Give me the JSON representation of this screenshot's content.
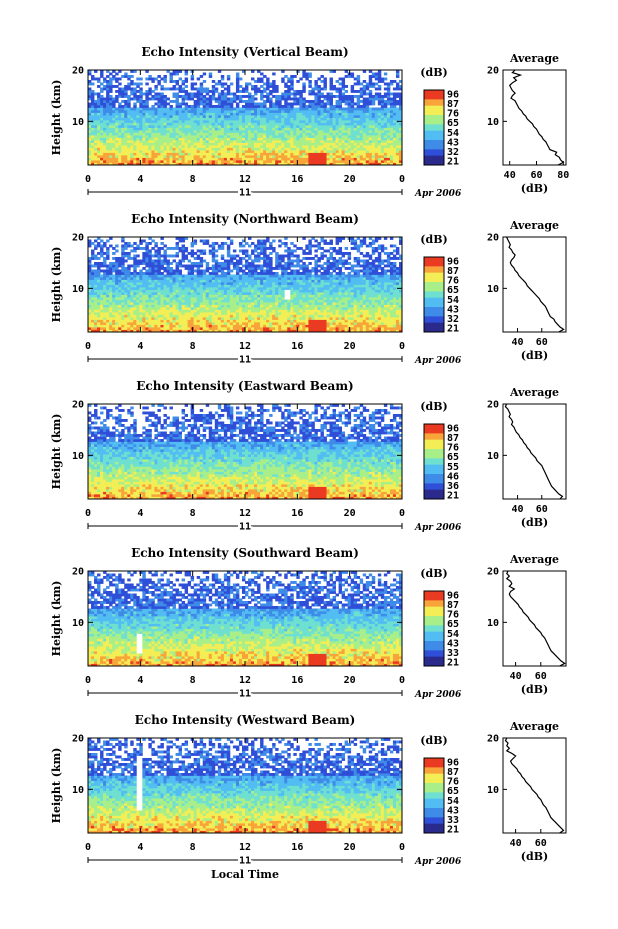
{
  "colors": {
    "colormap": [
      "#2a2a8c",
      "#2f4fd8",
      "#3f8be8",
      "#52bdf2",
      "#6fe0d0",
      "#a8ef8a",
      "#f3ee55",
      "#f8a43a",
      "#ea3a22"
    ],
    "profile_line": "#000000",
    "axis": "#000000"
  },
  "xlabel": "Local Time",
  "chart_data": [
    {
      "type": "heatmap",
      "title": "Echo Intensity (Vertical Beam)",
      "ylabel": "Height (km)",
      "x_ticks": [
        "0",
        "4",
        "8",
        "12",
        "16",
        "20",
        "0"
      ],
      "xlim": [
        0,
        24
      ],
      "y_ticks": [
        "10",
        "20"
      ],
      "ylim": [
        1.5,
        20
      ],
      "date_day": "11",
      "date_label": "Apr 2006",
      "colorbar": {
        "unit": "(dB)",
        "ticks": [
          "96",
          "87",
          "76",
          "65",
          "54",
          "43",
          "32",
          "21"
        ]
      },
      "profile": {
        "title": "Average",
        "xlabel": "(dB)",
        "x_ticks": [
          "40",
          "60",
          "80"
        ],
        "xlim": [
          35,
          82
        ],
        "y_ticks": [
          "10",
          "20"
        ],
        "ylim": [
          1.5,
          20
        ],
        "heights": [
          20,
          19.5,
          19,
          18.5,
          18,
          17.5,
          17,
          16.5,
          16,
          15.5,
          15,
          14.5,
          14,
          13.5,
          13,
          12.5,
          12,
          11.5,
          11,
          10.5,
          10,
          9.5,
          9,
          8.5,
          8,
          7.5,
          7,
          6.5,
          6,
          5.5,
          5,
          4.5,
          4,
          3.5,
          3,
          2.5,
          2,
          1.5
        ],
        "values": [
          44,
          42,
          48,
          43,
          45,
          42,
          40,
          41,
          42,
          44,
          42,
          41,
          44,
          45,
          46,
          47,
          49,
          50,
          52,
          53,
          55,
          57,
          58,
          60,
          61,
          62,
          64,
          65,
          67,
          68,
          69,
          70,
          75,
          74,
          77,
          78,
          80,
          76
        ]
      }
    },
    {
      "type": "heatmap",
      "title": "Echo Intensity (Northward Beam)",
      "ylabel": "Height (km)",
      "x_ticks": [
        "0",
        "4",
        "8",
        "12",
        "16",
        "20",
        "0"
      ],
      "xlim": [
        0,
        24
      ],
      "y_ticks": [
        "10",
        "20"
      ],
      "ylim": [
        1.5,
        20
      ],
      "date_day": "11",
      "date_label": "Apr 2006",
      "colorbar": {
        "unit": "(dB)",
        "ticks": [
          "96",
          "87",
          "76",
          "65",
          "54",
          "43",
          "32",
          "21"
        ]
      },
      "profile": {
        "title": "Average",
        "xlabel": "(dB)",
        "x_ticks": [
          "40",
          "60"
        ],
        "xlim": [
          28,
          80
        ],
        "y_ticks": [
          "10",
          "20"
        ],
        "ylim": [
          1.5,
          20
        ],
        "heights": [
          20,
          19.5,
          19,
          18.5,
          18,
          17.5,
          17,
          16.5,
          16,
          15.5,
          15,
          14.5,
          14,
          13.5,
          13,
          12.5,
          12,
          11.5,
          11,
          10.5,
          10,
          9.5,
          9,
          8.5,
          8,
          7.5,
          7,
          6.5,
          6,
          5.5,
          5,
          4.5,
          4,
          3.5,
          3,
          2.5,
          2,
          1.5
        ],
        "values": [
          31,
          32,
          33,
          34,
          33,
          35,
          36,
          38,
          37,
          35,
          34,
          35,
          37,
          38,
          40,
          41,
          43,
          45,
          47,
          48,
          50,
          52,
          54,
          56,
          58,
          59,
          61,
          63,
          64,
          65,
          66,
          67,
          70,
          71,
          73,
          75,
          78,
          74
        ]
      }
    },
    {
      "type": "heatmap",
      "title": "Echo Intensity (Eastward Beam)",
      "ylabel": "Height (km)",
      "x_ticks": [
        "0",
        "4",
        "8",
        "12",
        "16",
        "20",
        "0"
      ],
      "xlim": [
        0,
        24
      ],
      "y_ticks": [
        "10",
        "20"
      ],
      "ylim": [
        1.5,
        20
      ],
      "date_day": "11",
      "date_label": "Apr 2006",
      "colorbar": {
        "unit": "(dB)",
        "ticks": [
          "96",
          "87",
          "76",
          "65",
          "55",
          "46",
          "36",
          "21"
        ]
      },
      "profile": {
        "title": "Average",
        "xlabel": "(dB)",
        "x_ticks": [
          "40",
          "60"
        ],
        "xlim": [
          28,
          80
        ],
        "y_ticks": [
          "10",
          "20"
        ],
        "ylim": [
          1.5,
          20
        ],
        "heights": [
          20,
          19.5,
          19,
          18.5,
          18,
          17.5,
          17,
          16.5,
          16,
          15.5,
          15,
          14.5,
          14,
          13.5,
          13,
          12.5,
          12,
          11.5,
          11,
          10.5,
          10,
          9.5,
          9,
          8.5,
          8,
          7.5,
          7,
          6.5,
          6,
          5.5,
          5,
          4.5,
          4,
          3.5,
          3,
          2.5,
          2,
          1.5
        ],
        "values": [
          31,
          30,
          32,
          33,
          34,
          33,
          35,
          36,
          35,
          37,
          38,
          39,
          41,
          42,
          44,
          45,
          47,
          48,
          50,
          51,
          53,
          55,
          56,
          58,
          60,
          61,
          62,
          63,
          64,
          65,
          66,
          67,
          68,
          70,
          72,
          74,
          77,
          75
        ]
      }
    },
    {
      "type": "heatmap",
      "title": "Echo Intensity (Southward Beam)",
      "ylabel": "Height (km)",
      "x_ticks": [
        "0",
        "4",
        "8",
        "12",
        "16",
        "20",
        "0"
      ],
      "xlim": [
        0,
        24
      ],
      "y_ticks": [
        "10",
        "20"
      ],
      "ylim": [
        1.5,
        20
      ],
      "date_day": "11",
      "date_label": "Apr 2006",
      "colorbar": {
        "unit": "(dB)",
        "ticks": [
          "96",
          "87",
          "76",
          "65",
          "54",
          "43",
          "33",
          "21"
        ]
      },
      "profile": {
        "title": "Average",
        "xlabel": "(dB)",
        "x_ticks": [
          "40",
          "60"
        ],
        "xlim": [
          30,
          80
        ],
        "y_ticks": [
          "10",
          "20"
        ],
        "ylim": [
          1.5,
          20
        ],
        "heights": [
          20,
          19.5,
          19,
          18.5,
          18,
          17.5,
          17,
          16.5,
          16,
          15.5,
          15,
          14.5,
          14,
          13.5,
          13,
          12.5,
          12,
          11.5,
          11,
          10.5,
          10,
          9.5,
          9,
          8.5,
          8,
          7.5,
          7,
          6.5,
          6,
          5.5,
          5,
          4.5,
          4,
          3.5,
          3,
          2.5,
          2,
          1.5
        ],
        "values": [
          34,
          33,
          35,
          33,
          36,
          37,
          35,
          39,
          36,
          35,
          36,
          38,
          40,
          42,
          43,
          45,
          46,
          48,
          50,
          51,
          53,
          55,
          56,
          58,
          60,
          61,
          63,
          64,
          65,
          66,
          67,
          68,
          70,
          72,
          74,
          76,
          79,
          75
        ]
      }
    },
    {
      "type": "heatmap",
      "title": "Echo Intensity (Westward Beam)",
      "ylabel": "Height (km)",
      "x_ticks": [
        "0",
        "4",
        "8",
        "12",
        "16",
        "20",
        "0"
      ],
      "xlim": [
        0,
        24
      ],
      "y_ticks": [
        "10",
        "20"
      ],
      "ylim": [
        1.5,
        20
      ],
      "date_day": "11",
      "date_label": "Apr 2006",
      "colorbar": {
        "unit": "(dB)",
        "ticks": [
          "96",
          "87",
          "76",
          "65",
          "54",
          "43",
          "33",
          "21"
        ]
      },
      "profile": {
        "title": "Average",
        "xlabel": "(dB)",
        "x_ticks": [
          "40",
          "60"
        ],
        "xlim": [
          30,
          80
        ],
        "y_ticks": [
          "10",
          "20"
        ],
        "ylim": [
          1.5,
          20
        ],
        "heights": [
          20,
          19.5,
          19,
          18.5,
          18,
          17.5,
          17,
          16.5,
          16,
          15.5,
          15,
          14.5,
          14,
          13.5,
          13,
          12.5,
          12,
          11.5,
          11,
          10.5,
          10,
          9.5,
          9,
          8.5,
          8,
          7.5,
          7,
          6.5,
          6,
          5.5,
          5,
          4.5,
          4,
          3.5,
          3,
          2.5,
          2,
          1.5
        ],
        "values": [
          33,
          32,
          34,
          33,
          35,
          33,
          37,
          40,
          38,
          36,
          37,
          39,
          41,
          42,
          44,
          45,
          47,
          48,
          50,
          52,
          53,
          55,
          57,
          58,
          60,
          61,
          62,
          64,
          65,
          66,
          67,
          68,
          70,
          72,
          74,
          76,
          78,
          75
        ]
      }
    }
  ]
}
